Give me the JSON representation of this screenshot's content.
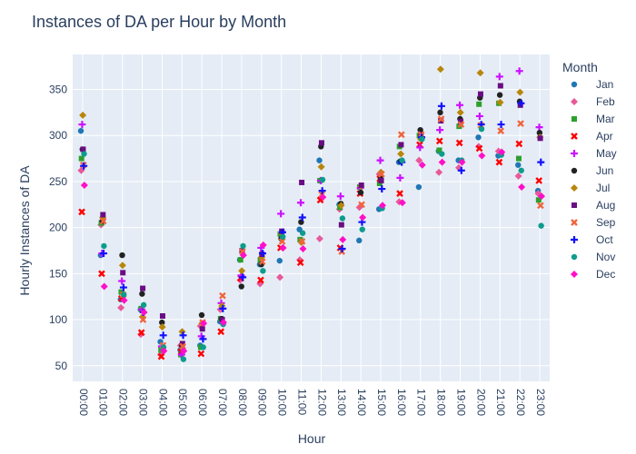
{
  "chart_data": {
    "type": "scatter",
    "title": "Instances of DA per Hour by Month",
    "xlabel": "Hour",
    "ylabel": "Hourly Instances of DA",
    "legend_title": "Month",
    "legend_placement": "right",
    "grid": true,
    "ylim": [
      33,
      388
    ],
    "y_ticks": [
      50,
      100,
      150,
      200,
      250,
      300,
      350
    ],
    "categories": [
      "00:00",
      "01:00",
      "02:00",
      "03:00",
      "04:00",
      "05:00",
      "06:00",
      "07:00",
      "08:00",
      "09:00",
      "10:00",
      "11:00",
      "12:00",
      "13:00",
      "14:00",
      "15:00",
      "16:00",
      "17:00",
      "18:00",
      "19:00",
      "20:00",
      "21:00",
      "22:00",
      "23:00"
    ],
    "series": [
      {
        "name": "Jan",
        "color": "#1f77b4",
        "marker": "circle",
        "values": [
          305,
          170,
          122,
          111,
          76,
          67,
          72,
          98,
          165,
          160,
          164,
          198,
          273,
          225,
          186,
          220,
          271,
          244,
          283,
          273,
          298,
          278,
          268,
          240
        ]
      },
      {
        "name": "Feb",
        "color": "#e7599a",
        "marker": "diamond",
        "values": [
          262,
          203,
          113,
          84,
          62,
          72,
          93,
          111,
          143,
          139,
          146,
          165,
          188,
          220,
          222,
          258,
          228,
          273,
          260,
          265,
          288,
          283,
          256,
          237
        ]
      },
      {
        "name": "Mar",
        "color": "#2ca02c",
        "marker": "square",
        "values": [
          275,
          205,
          130,
          112,
          67,
          62,
          70,
          101,
          165,
          165,
          193,
          187,
          251,
          222,
          244,
          248,
          288,
          300,
          284,
          310,
          334,
          335,
          275,
          230
        ]
      },
      {
        "name": "Apr",
        "color": "#ff0000",
        "marker": "x",
        "values": [
          217,
          150,
          123,
          86,
          60,
          65,
          63,
          87,
          145,
          143,
          178,
          162,
          230,
          178,
          237,
          253,
          237,
          290,
          294,
          292,
          286,
          271,
          291,
          251
        ]
      },
      {
        "name": "May",
        "color": "#cc11ff",
        "marker": "cross",
        "values": [
          312,
          172,
          142,
          111,
          71,
          62,
          82,
          118,
          148,
          178,
          215,
          227,
          251,
          234,
          243,
          273,
          254,
          287,
          306,
          333,
          321,
          364,
          370,
          309
        ]
      },
      {
        "name": "Jun",
        "color": "#222222",
        "marker": "circle",
        "values": [
          285,
          207,
          170,
          128,
          97,
          72,
          105,
          101,
          136,
          160,
          188,
          206,
          288,
          226,
          238,
          253,
          272,
          306,
          325,
          318,
          341,
          344,
          337,
          303
        ]
      },
      {
        "name": "Jul",
        "color": "#b8860b",
        "marker": "diamond",
        "values": [
          322,
          211,
          159,
          103,
          92,
          87,
          96,
          115,
          153,
          168,
          194,
          184,
          266,
          224,
          245,
          260,
          280,
          296,
          372,
          325,
          368,
          336,
          347,
          298
        ]
      },
      {
        "name": "Aug",
        "color": "#6a0d83",
        "marker": "square",
        "values": [
          285,
          214,
          151,
          134,
          104,
          74,
          90,
          100,
          175,
          171,
          196,
          249,
          292,
          203,
          246,
          251,
          290,
          301,
          316,
          315,
          345,
          354,
          333,
          297
        ]
      },
      {
        "name": "Sep",
        "color": "#f0643c",
        "marker": "x",
        "values": [
          268,
          207,
          127,
          100,
          72,
          71,
          97,
          126,
          174,
          163,
          185,
          185,
          236,
          174,
          225,
          258,
          301,
          301,
          318,
          312,
          311,
          305,
          313,
          224
        ]
      },
      {
        "name": "Oct",
        "color": "#1010ff",
        "marker": "cross",
        "values": [
          267,
          172,
          135,
          108,
          83,
          83,
          79,
          112,
          146,
          172,
          195,
          211,
          240,
          177,
          206,
          242,
          271,
          298,
          332,
          262,
          312,
          312,
          335,
          271
        ]
      },
      {
        "name": "Nov",
        "color": "#0e9c8c",
        "marker": "circle",
        "values": [
          280,
          180,
          127,
          116,
          70,
          57,
          70,
          95,
          180,
          153,
          190,
          194,
          252,
          210,
          198,
          221,
          273,
          296,
          280,
          273,
          307,
          279,
          262,
          202
        ]
      },
      {
        "name": "Dec",
        "color": "#ff10c8",
        "marker": "diamond",
        "values": [
          246,
          136,
          121,
          108,
          66,
          66,
          96,
          97,
          170,
          181,
          178,
          177,
          233,
          187,
          211,
          224,
          227,
          268,
          271,
          271,
          278,
          282,
          244,
          234
        ]
      }
    ]
  }
}
